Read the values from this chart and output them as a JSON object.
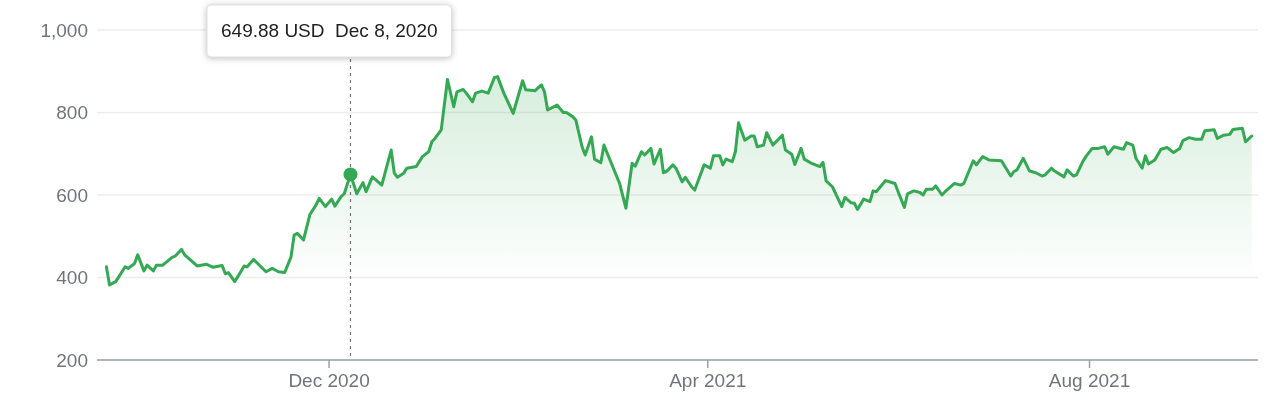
{
  "chart_data": {
    "type": "area",
    "x": [
      "2020-09-21",
      "2020-09-22",
      "2020-09-24",
      "2020-09-27",
      "2020-09-28",
      "2020-09-30",
      "2020-10-01",
      "2020-10-03",
      "2020-10-04",
      "2020-10-06",
      "2020-10-07",
      "2020-10-09",
      "2020-10-12",
      "2020-10-13",
      "2020-10-15",
      "2020-10-16",
      "2020-10-20",
      "2020-10-23",
      "2020-10-25",
      "2020-10-28",
      "2020-10-29",
      "2020-10-30",
      "2020-11-01",
      "2020-11-02",
      "2020-11-04",
      "2020-11-05",
      "2020-11-07",
      "2020-11-11",
      "2020-11-13",
      "2020-11-15",
      "2020-11-17",
      "2020-11-19",
      "2020-11-20",
      "2020-11-21",
      "2020-11-23",
      "2020-11-25",
      "2020-11-27",
      "2020-11-28",
      "2020-11-30",
      "2020-12-02",
      "2020-12-03",
      "2020-12-05",
      "2020-12-06",
      "2020-12-08",
      "2020-12-10",
      "2020-12-12",
      "2020-12-13",
      "2020-12-15",
      "2020-12-18",
      "2020-12-21",
      "2020-12-22",
      "2020-12-23",
      "2020-12-25",
      "2020-12-26",
      "2020-12-29",
      "2020-12-31",
      "2021-01-02",
      "2021-01-03",
      "2021-01-04",
      "2021-01-06",
      "2021-01-08",
      "2021-01-10",
      "2021-01-11",
      "2021-01-13",
      "2021-01-14",
      "2021-01-16",
      "2021-01-17",
      "2021-01-19",
      "2021-01-21",
      "2021-01-23",
      "2021-01-24",
      "2021-01-26",
      "2021-01-29",
      "2021-02-01",
      "2021-02-02",
      "2021-02-05",
      "2021-02-07",
      "2021-02-08",
      "2021-02-09",
      "2021-02-12",
      "2021-02-14",
      "2021-02-15",
      "2021-02-17",
      "2021-02-18",
      "2021-02-20",
      "2021-02-21",
      "2021-02-23",
      "2021-02-24",
      "2021-02-26",
      "2021-02-27",
      "2021-03-04",
      "2021-03-06",
      "2021-03-08",
      "2021-03-09",
      "2021-03-11",
      "2021-03-12",
      "2021-03-14",
      "2021-03-15",
      "2021-03-17",
      "2021-03-18",
      "2021-03-19",
      "2021-03-21",
      "2021-03-22",
      "2021-03-24",
      "2021-03-25",
      "2021-03-27",
      "2021-03-28",
      "2021-03-31",
      "2021-04-02",
      "2021-04-03",
      "2021-04-05",
      "2021-04-06",
      "2021-04-07",
      "2021-04-09",
      "2021-04-10",
      "2021-04-11",
      "2021-04-13",
      "2021-04-15",
      "2021-04-16",
      "2021-04-17",
      "2021-04-19",
      "2021-04-20",
      "2021-04-22",
      "2021-04-25",
      "2021-04-26",
      "2021-04-28",
      "2021-04-29",
      "2021-05-01",
      "2021-05-02",
      "2021-05-04",
      "2021-05-05",
      "2021-05-07",
      "2021-05-08",
      "2021-05-09",
      "2021-05-11",
      "2021-05-14",
      "2021-05-15",
      "2021-05-17",
      "2021-05-18",
      "2021-05-19",
      "2021-05-21",
      "2021-05-23",
      "2021-05-24",
      "2021-05-25",
      "2021-05-28",
      "2021-05-31",
      "2021-06-01",
      "2021-06-03",
      "2021-06-04",
      "2021-06-06",
      "2021-06-08",
      "2021-06-09",
      "2021-06-10",
      "2021-06-12",
      "2021-06-13",
      "2021-06-15",
      "2021-06-16",
      "2021-06-19",
      "2021-06-21",
      "2021-06-22",
      "2021-06-25",
      "2021-06-26",
      "2021-06-28",
      "2021-06-30",
      "2021-07-04",
      "2021-07-07",
      "2021-07-08",
      "2021-07-09",
      "2021-07-11",
      "2021-07-13",
      "2021-07-15",
      "2021-07-17",
      "2021-07-18",
      "2021-07-20",
      "2021-07-21",
      "2021-07-24",
      "2021-07-25",
      "2021-07-27",
      "2021-07-28",
      "2021-07-30",
      "2021-07-31",
      "2021-08-02",
      "2021-08-04",
      "2021-08-06",
      "2021-08-07",
      "2021-08-09",
      "2021-08-12",
      "2021-08-13",
      "2021-08-15",
      "2021-08-16",
      "2021-08-18",
      "2021-08-19",
      "2021-08-20",
      "2021-08-22",
      "2021-08-24",
      "2021-08-26",
      "2021-08-28",
      "2021-08-30",
      "2021-08-31",
      "2021-09-02",
      "2021-09-04",
      "2021-09-06",
      "2021-09-07",
      "2021-09-10",
      "2021-09-11",
      "2021-09-13",
      "2021-09-15",
      "2021-09-16",
      "2021-09-19",
      "2021-09-20",
      "2021-09-22"
    ],
    "series": [
      {
        "color": "#34a853",
        "values": [
          426,
          382,
          390,
          426,
          422,
          434,
          455,
          416,
          430,
          416,
          430,
          430,
          449,
          452,
          468,
          455,
          428,
          432,
          425,
          429,
          409,
          412,
          390,
          402,
          428,
          426,
          444,
          414,
          422,
          414,
          412,
          450,
          503,
          507,
          491,
          552,
          576,
          592,
          572,
          590,
          573,
          596,
          603,
          650,
          603,
          630,
          608,
          644,
          624,
          709,
          653,
          643,
          653,
          665,
          669,
          693,
          705,
          729,
          737,
          758,
          880,
          814,
          850,
          856,
          847,
          826,
          847,
          852,
          847,
          885,
          887,
          847,
          798,
          877,
          855,
          853,
          867,
          850,
          806,
          818,
          800,
          800,
          790,
          782,
          717,
          697,
          741,
          687,
          678,
          721,
          628,
          568,
          677,
          670,
          705,
          697,
          713,
          675,
          711,
          654,
          657,
          673,
          665,
          632,
          643,
          620,
          612,
          673,
          665,
          695,
          695,
          673,
          687,
          681,
          705,
          775,
          733,
          743,
          743,
          717,
          721,
          751,
          721,
          745,
          709,
          699,
          674,
          713,
          687,
          678,
          675,
          669,
          679,
          634,
          620,
          572,
          594,
          581,
          580,
          565,
          590,
          584,
          610,
          608,
          635,
          628,
          608,
          570,
          603,
          610,
          606,
          600,
          614,
          614,
          622,
          600,
          608,
          628,
          624,
          628,
          683,
          673,
          693,
          685,
          683,
          646,
          657,
          661,
          689,
          658,
          654,
          646,
          649,
          665,
          658,
          644,
          661,
          646,
          649,
          681,
          693,
          713,
          713,
          717,
          699,
          717,
          711,
          727,
          721,
          689,
          665,
          695,
          675,
          685,
          711,
          715,
          703,
          713,
          732,
          739,
          735,
          735,
          756,
          758,
          737,
          745,
          747,
          759,
          762,
          729,
          743
        ]
      }
    ],
    "xlim": [
      "2020-09-18",
      "2021-09-24"
    ],
    "xticks": [
      {
        "value": "2020-12-01",
        "label": "Dec 2020"
      },
      {
        "value": "2021-04-01",
        "label": "Apr 2021"
      },
      {
        "value": "2021-08-01",
        "label": "Aug 2021"
      }
    ],
    "ylim": [
      200,
      1000
    ],
    "yticks": [
      200,
      400,
      600,
      800,
      {
        "value": 1000,
        "label": "1,000"
      }
    ],
    "grid": "y",
    "ref_lines": [
      {
        "axis": "x",
        "value": "2020-12-08",
        "color": "#757575",
        "line_style": "dotted"
      }
    ],
    "annotations": [
      "649.88 USD  Dec 8, 2020"
    ]
  }
}
